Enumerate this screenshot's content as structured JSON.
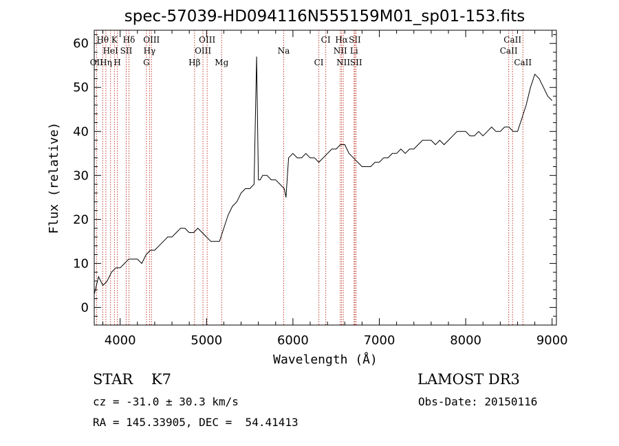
{
  "chart_data": {
    "type": "line",
    "title": "spec-57039-HD094116N555159M01_sp01-153.fits",
    "xlabel": "Wavelength (Å)",
    "ylabel": "Flux (relative)",
    "xlim": [
      3700,
      9050
    ],
    "ylim": [
      -4,
      63
    ],
    "xticks": [
      4000,
      5000,
      6000,
      7000,
      8000,
      9000
    ],
    "yticks": [
      0,
      10,
      20,
      30,
      40,
      50,
      60
    ],
    "grid": false,
    "series": [
      {
        "x": [
          3700,
          3750,
          3800,
          3850,
          3900,
          3950,
          4000,
          4050,
          4100,
          4150,
          4200,
          4250,
          4300,
          4350,
          4400,
          4450,
          4500,
          4550,
          4600,
          4650,
          4700,
          4750,
          4800,
          4850,
          4900,
          4950,
          5000,
          5050,
          5100,
          5150,
          5200,
          5250,
          5300,
          5350,
          5400,
          5450,
          5500,
          5550,
          5580,
          5600,
          5620,
          5650,
          5700,
          5750,
          5800,
          5850,
          5900,
          5920,
          5950,
          6000,
          6050,
          6100,
          6150,
          6200,
          6250,
          6300,
          6350,
          6400,
          6450,
          6500,
          6550,
          6600,
          6650,
          6700,
          6750,
          6800,
          6850,
          6900,
          6950,
          7000,
          7050,
          7100,
          7150,
          7200,
          7250,
          7300,
          7350,
          7400,
          7450,
          7500,
          7550,
          7600,
          7650,
          7700,
          7750,
          7800,
          7850,
          7900,
          7950,
          8000,
          8050,
          8100,
          8150,
          8200,
          8250,
          8300,
          8350,
          8400,
          8450,
          8500,
          8550,
          8600,
          8650,
          8700,
          8750,
          8800,
          8850,
          8900,
          8950,
          9000
        ],
        "y": [
          3,
          7,
          5,
          6,
          8,
          9,
          9,
          10,
          11,
          11,
          11,
          10,
          12,
          13,
          13,
          14,
          15,
          16,
          16,
          17,
          18,
          18,
          17,
          17,
          18,
          17,
          16,
          15,
          15,
          15,
          18,
          21,
          23,
          24,
          26,
          27,
          27,
          28,
          57,
          29,
          29,
          30,
          30,
          29,
          29,
          28,
          27,
          25,
          34,
          35,
          34,
          34,
          35,
          34,
          34,
          33,
          34,
          35,
          36,
          36,
          37,
          37,
          35,
          34,
          33,
          32,
          32,
          32,
          33,
          33,
          34,
          34,
          35,
          35,
          36,
          35,
          36,
          36,
          37,
          38,
          38,
          38,
          37,
          38,
          37,
          38,
          39,
          40,
          40,
          40,
          39,
          39,
          40,
          39,
          40,
          41,
          40,
          40,
          41,
          41,
          40,
          40,
          43,
          46,
          50,
          53,
          52,
          50,
          48,
          47
        ]
      }
    ],
    "lines": [
      {
        "name": "Hθ",
        "w": 3798,
        "row": 1
      },
      {
        "name": "K",
        "w": 3934,
        "row": 1
      },
      {
        "name": "Hδ",
        "w": 4102,
        "row": 1
      },
      {
        "name": "OIII",
        "w": 4363,
        "row": 1
      },
      {
        "name": "OIII",
        "w": 5007,
        "row": 1
      },
      {
        "name": "CI",
        "w": 6380,
        "row": 1
      },
      {
        "name": "Hα",
        "w": 6563,
        "row": 1
      },
      {
        "name": "SII",
        "w": 6717,
        "row": 1
      },
      {
        "name": "CaII",
        "w": 8542,
        "row": 1
      },
      {
        "name": "HeI",
        "w": 3889,
        "row": 2
      },
      {
        "name": "SII",
        "w": 4070,
        "row": 2
      },
      {
        "name": "Hγ",
        "w": 4340,
        "row": 2
      },
      {
        "name": "OIII",
        "w": 4959,
        "row": 2
      },
      {
        "name": "Na",
        "w": 5893,
        "row": 2
      },
      {
        "name": "NII",
        "w": 6548,
        "row": 2
      },
      {
        "name": "Li",
        "w": 6708,
        "row": 2
      },
      {
        "name": "CaII",
        "w": 8498,
        "row": 2
      },
      {
        "name": "OII",
        "w": 3727,
        "row": 3
      },
      {
        "name": "Hη",
        "w": 3835,
        "row": 3
      },
      {
        "name": "H",
        "w": 3968,
        "row": 3
      },
      {
        "name": "G",
        "w": 4304,
        "row": 3
      },
      {
        "name": "Hβ",
        "w": 4861,
        "row": 3
      },
      {
        "name": "Mg",
        "w": 5175,
        "row": 3
      },
      {
        "name": "CI",
        "w": 6300,
        "row": 3
      },
      {
        "name": "NII",
        "w": 6583,
        "row": 3
      },
      {
        "name": "SII",
        "w": 6731,
        "row": 3
      },
      {
        "name": "CaII",
        "w": 8662,
        "row": 3
      }
    ],
    "line_color": "#c0392b"
  },
  "info": {
    "class_label": "STAR    K7",
    "survey": "LAMOST DR3",
    "cz": "cz = -31.0 ± 30.3 km/s",
    "obs_date": "Obs-Date: 20150116",
    "coords": "RA = 145.33905, DEC =  54.41413"
  }
}
